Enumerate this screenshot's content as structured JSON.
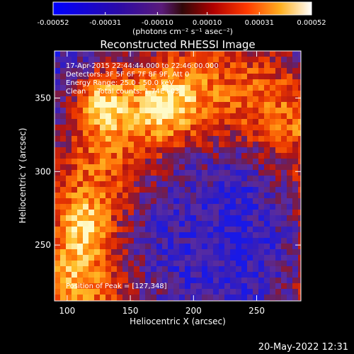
{
  "chart_data": {
    "type": "heatmap",
    "title": "Reconstructed RHESSI Image",
    "xlabel": "Heliocentric X (arcsec)",
    "ylabel": "Heliocentric Y (arcsec)",
    "xlim": [
      90,
      285
    ],
    "ylim": [
      212,
      382
    ],
    "x_ticks": [
      100,
      150,
      200,
      250
    ],
    "y_ticks": [
      250,
      300,
      350
    ],
    "colorbar": {
      "range": [
        -0.00052,
        0.00052
      ],
      "tick_values": [
        -0.00052,
        -0.00031,
        -0.0001,
        0.0001,
        0.00031,
        0.00052
      ],
      "tick_labels": [
        "-0.00052",
        "-0.00031",
        "-0.00010",
        "0.00010",
        "0.00031",
        "0.00052"
      ],
      "unit_label": "(photons cm⁻² s⁻¹ asec⁻²)"
    },
    "annotations": [
      "17-Apr-2015 22:44:44.000 to 22:46:00.000",
      "Detectors: 3F 5F 6F 7F 8F 9F, Att 0",
      "Energy Range: 25.0 - 50.0 keV",
      "Clean     Total counts: 1.74E+03"
    ],
    "peak_label": "Position of Peak = [127,348]",
    "peak": [
      127,
      348
    ],
    "date_stamp": "20-May-2022 12:31",
    "grid": false,
    "colors": {
      "background": "#000000",
      "axes": "#ffffff",
      "colormap": [
        "#0000ff",
        "#3c1a8c",
        "#5a2aa0",
        "#7a1c50",
        "#d01000",
        "#ff4a00",
        "#ff9a10",
        "#ffffff"
      ]
    }
  }
}
